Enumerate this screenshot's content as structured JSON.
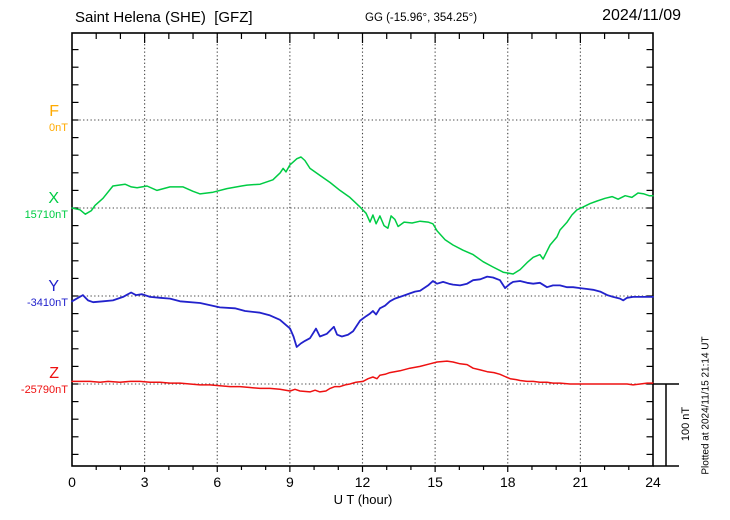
{
  "header": {
    "station_title": "Saint Helena (SHE)  [GFZ]",
    "gg_coords": "GG (-15.96°, 354.25°)",
    "date": "2024/11/09"
  },
  "channels": [
    {
      "id": "F",
      "label": "F",
      "value_label": "0nT",
      "color": "#FFAA00"
    },
    {
      "id": "X",
      "label": "X",
      "value_label": "15710nT",
      "color": "#00CC44"
    },
    {
      "id": "Y",
      "label": "Y",
      "value_label": "-3410nT",
      "color": "#2222CC"
    },
    {
      "id": "Z",
      "label": "Z",
      "value_label": "-25790nT",
      "color": "#EE1111"
    }
  ],
  "x_axis": {
    "label": "U T (hour)",
    "range": [
      0,
      24
    ],
    "major_tick_step": 3,
    "minor_tick_step": 1,
    "tick_labels": [
      "0",
      "3",
      "6",
      "9",
      "12",
      "15",
      "18",
      "21",
      "24"
    ]
  },
  "scale_bar": {
    "label": "100 nT",
    "span_nT": 100
  },
  "footer_note": "Plotted at 2024/11/15 21:14 UT",
  "chart_data": {
    "type": "line",
    "title": "Saint Helena (SHE) magnetogram, 2024/11/09",
    "x_unit": "hour UT",
    "x_range": [
      0,
      24
    ],
    "grid": "dotted horizontal baseline per channel; dotted vertical line every 3 h; minor ticks every hour and every 20 nT",
    "minor_y_tick_nT": 20,
    "legend_position": "left margin (channel letter + baseline value)",
    "series": [
      {
        "name": "F",
        "baseline_value": "0nT",
        "color": "#FFAA00",
        "points": []
      },
      {
        "name": "X",
        "baseline_value": "15710nT",
        "color": "#00CC44",
        "points": [
          [
            0,
            0
          ],
          [
            0.33,
            -2
          ],
          [
            0.55,
            -7
          ],
          [
            0.8,
            -3
          ],
          [
            0.95,
            3
          ],
          [
            1.28,
            11
          ],
          [
            1.69,
            25
          ],
          [
            2.19,
            27
          ],
          [
            2.45,
            24
          ],
          [
            2.69,
            23
          ],
          [
            3.1,
            25
          ],
          [
            3.51,
            20
          ],
          [
            4.05,
            24
          ],
          [
            4.59,
            24
          ],
          [
            5.0,
            19
          ],
          [
            5.29,
            16
          ],
          [
            5.83,
            18
          ],
          [
            6.4,
            22
          ],
          [
            7.0,
            25
          ],
          [
            7.23,
            26
          ],
          [
            7.77,
            27
          ],
          [
            8.3,
            32
          ],
          [
            8.6,
            40
          ],
          [
            8.72,
            45
          ],
          [
            8.84,
            41
          ],
          [
            9.0,
            49
          ],
          [
            9.29,
            56
          ],
          [
            9.46,
            58
          ],
          [
            9.62,
            54
          ],
          [
            9.83,
            45
          ],
          [
            10.24,
            37
          ],
          [
            10.66,
            29
          ],
          [
            11.07,
            20
          ],
          [
            11.48,
            12
          ],
          [
            11.9,
            1
          ],
          [
            12.15,
            -6
          ],
          [
            12.31,
            -16
          ],
          [
            12.43,
            -8
          ],
          [
            12.56,
            -18
          ],
          [
            12.72,
            -9
          ],
          [
            12.89,
            -20
          ],
          [
            13.05,
            -23
          ],
          [
            13.18,
            -9
          ],
          [
            13.34,
            -13
          ],
          [
            13.47,
            -21
          ],
          [
            13.72,
            -16
          ],
          [
            14.05,
            -17
          ],
          [
            14.38,
            -15
          ],
          [
            14.71,
            -16
          ],
          [
            14.91,
            -18
          ],
          [
            15.08,
            -26
          ],
          [
            15.41,
            -36
          ],
          [
            15.74,
            -42
          ],
          [
            16.15,
            -48
          ],
          [
            16.57,
            -53
          ],
          [
            16.98,
            -61
          ],
          [
            17.39,
            -67
          ],
          [
            17.81,
            -73
          ],
          [
            18.22,
            -75
          ],
          [
            18.51,
            -70
          ],
          [
            18.8,
            -62
          ],
          [
            19.05,
            -56
          ],
          [
            19.33,
            -53
          ],
          [
            19.46,
            -58
          ],
          [
            19.75,
            -42
          ],
          [
            20.03,
            -33
          ],
          [
            20.16,
            -25
          ],
          [
            20.45,
            -16
          ],
          [
            20.65,
            -8
          ],
          [
            20.86,
            -2
          ],
          [
            21.11,
            1
          ],
          [
            21.4,
            5
          ],
          [
            21.69,
            8
          ],
          [
            22.02,
            11
          ],
          [
            22.31,
            13
          ],
          [
            22.56,
            10
          ],
          [
            22.85,
            14
          ],
          [
            23.13,
            12
          ],
          [
            23.38,
            17
          ],
          [
            23.63,
            16
          ],
          [
            23.84,
            14
          ],
          [
            24,
            14
          ]
        ]
      },
      {
        "name": "Y",
        "baseline_value": "-3410nT",
        "color": "#2222CC",
        "points": [
          [
            0,
            -6
          ],
          [
            0.25,
            -2
          ],
          [
            0.45,
            1
          ],
          [
            0.66,
            -5
          ],
          [
            0.87,
            -7
          ],
          [
            1.28,
            -6
          ],
          [
            1.69,
            -5
          ],
          [
            2.11,
            -1
          ],
          [
            2.44,
            4
          ],
          [
            2.64,
            1
          ],
          [
            2.89,
            2
          ],
          [
            3.22,
            -1
          ],
          [
            3.64,
            -2
          ],
          [
            4.05,
            -3
          ],
          [
            4.46,
            -6
          ],
          [
            5.29,
            -8
          ],
          [
            6.11,
            -13
          ],
          [
            6.73,
            -14
          ],
          [
            7.15,
            -17
          ],
          [
            7.77,
            -19
          ],
          [
            8.18,
            -22
          ],
          [
            8.59,
            -27
          ],
          [
            9.01,
            -37
          ],
          [
            9.15,
            -46
          ],
          [
            9.28,
            -58
          ],
          [
            9.45,
            -54
          ],
          [
            9.62,
            -51
          ],
          [
            9.83,
            -48
          ],
          [
            10.08,
            -37
          ],
          [
            10.24,
            -46
          ],
          [
            10.53,
            -43
          ],
          [
            10.82,
            -35
          ],
          [
            10.95,
            -44
          ],
          [
            11.15,
            -46
          ],
          [
            11.4,
            -44
          ],
          [
            11.61,
            -40
          ],
          [
            11.9,
            -28
          ],
          [
            12.15,
            -23
          ],
          [
            12.31,
            -20
          ],
          [
            12.43,
            -17
          ],
          [
            12.56,
            -21
          ],
          [
            12.72,
            -14
          ],
          [
            12.93,
            -11
          ],
          [
            13.13,
            -6
          ],
          [
            13.34,
            -3
          ],
          [
            13.55,
            -1
          ],
          [
            13.76,
            1
          ],
          [
            13.96,
            3
          ],
          [
            14.17,
            5
          ],
          [
            14.38,
            6
          ],
          [
            14.71,
            12
          ],
          [
            14.91,
            17
          ],
          [
            15.08,
            14
          ],
          [
            15.33,
            16
          ],
          [
            15.57,
            14
          ],
          [
            15.74,
            13
          ],
          [
            16.03,
            12
          ],
          [
            16.32,
            14
          ],
          [
            16.57,
            18
          ],
          [
            16.86,
            19
          ],
          [
            17.15,
            22
          ],
          [
            17.39,
            21
          ],
          [
            17.68,
            18
          ],
          [
            17.89,
            9
          ],
          [
            18.1,
            14
          ],
          [
            18.22,
            16
          ],
          [
            18.51,
            17
          ],
          [
            18.8,
            15
          ],
          [
            19.05,
            14
          ],
          [
            19.33,
            15
          ],
          [
            19.62,
            10
          ],
          [
            19.87,
            12
          ],
          [
            20.16,
            12
          ],
          [
            20.45,
            10
          ],
          [
            20.7,
            10
          ],
          [
            20.99,
            9
          ],
          [
            21.28,
            8
          ],
          [
            21.53,
            7
          ],
          [
            21.82,
            5
          ],
          [
            22.11,
            1
          ],
          [
            22.35,
            -1
          ],
          [
            22.64,
            -3
          ],
          [
            22.77,
            -5
          ],
          [
            22.93,
            -2
          ],
          [
            23.18,
            -1
          ],
          [
            23.47,
            -1
          ],
          [
            23.76,
            -1
          ],
          [
            24,
            -1
          ]
        ]
      },
      {
        "name": "Z",
        "baseline_value": "-25790nT",
        "color": "#EE1111",
        "points": [
          [
            0,
            3
          ],
          [
            0.33,
            3
          ],
          [
            0.74,
            3
          ],
          [
            1.16,
            2
          ],
          [
            1.49,
            3
          ],
          [
            1.98,
            2
          ],
          [
            2.4,
            3
          ],
          [
            2.81,
            3
          ],
          [
            3.22,
            2
          ],
          [
            3.64,
            2
          ],
          [
            4.05,
            1
          ],
          [
            4.46,
            1
          ],
          [
            4.87,
            0
          ],
          [
            5.29,
            -1
          ],
          [
            5.7,
            -1
          ],
          [
            6.11,
            -2
          ],
          [
            6.53,
            -3
          ],
          [
            6.94,
            -3
          ],
          [
            7.35,
            -4
          ],
          [
            7.77,
            -5
          ],
          [
            8.18,
            -5
          ],
          [
            8.59,
            -6
          ],
          [
            9.01,
            -8
          ],
          [
            9.21,
            -6
          ],
          [
            9.42,
            -8
          ],
          [
            9.83,
            -9
          ],
          [
            10.04,
            -7
          ],
          [
            10.24,
            -9
          ],
          [
            10.49,
            -8
          ],
          [
            10.66,
            -5
          ],
          [
            10.86,
            -3
          ],
          [
            11.07,
            -3
          ],
          [
            11.28,
            -1
          ],
          [
            11.48,
            0
          ],
          [
            11.73,
            2
          ],
          [
            12.02,
            3
          ],
          [
            12.23,
            6
          ],
          [
            12.43,
            8
          ],
          [
            12.6,
            6
          ],
          [
            12.72,
            10
          ],
          [
            12.93,
            11
          ],
          [
            13.13,
            13
          ],
          [
            13.55,
            15
          ],
          [
            13.96,
            18
          ],
          [
            14.38,
            20
          ],
          [
            14.79,
            23
          ],
          [
            15.08,
            25
          ],
          [
            15.49,
            26
          ],
          [
            15.74,
            25
          ],
          [
            16.03,
            23
          ],
          [
            16.32,
            22
          ],
          [
            16.57,
            18
          ],
          [
            16.86,
            16
          ],
          [
            17.15,
            14
          ],
          [
            17.43,
            13
          ],
          [
            17.68,
            11
          ],
          [
            17.93,
            8
          ],
          [
            18.1,
            6
          ],
          [
            18.35,
            5
          ],
          [
            18.51,
            4
          ],
          [
            18.8,
            3
          ],
          [
            19.05,
            3
          ],
          [
            19.33,
            2
          ],
          [
            19.62,
            2
          ],
          [
            19.87,
            1
          ],
          [
            20.16,
            1
          ],
          [
            20.57,
            0
          ],
          [
            20.99,
            0
          ],
          [
            21.4,
            0
          ],
          [
            21.82,
            0
          ],
          [
            22.23,
            0
          ],
          [
            22.64,
            0
          ],
          [
            22.93,
            0
          ],
          [
            23.18,
            -1
          ],
          [
            23.47,
            0
          ],
          [
            23.76,
            1
          ],
          [
            24,
            1
          ]
        ]
      }
    ]
  }
}
